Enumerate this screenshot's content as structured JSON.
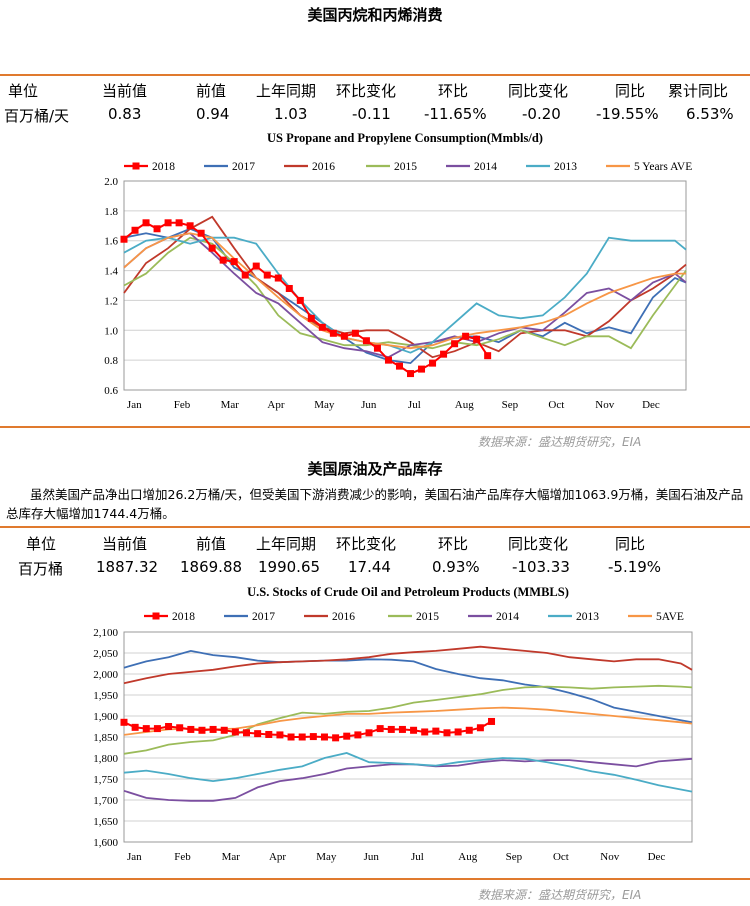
{
  "section1": {
    "title": "美国丙烷和丙烯消费",
    "table": {
      "headers": [
        "单位",
        "当前值",
        "前值",
        "上年同期",
        "环比变化",
        "环比",
        "同比变化",
        "同比",
        "累计同比"
      ],
      "row": [
        "百万桶/天",
        "0.83",
        "0.94",
        "1.03",
        "-0.11",
        "-11.65%",
        "-0.20",
        "-19.55%",
        "6.53%"
      ]
    },
    "source": "数据来源：盛达期货研究，EIA"
  },
  "section2": {
    "title": "美国原油及产品库存",
    "note": "虽然美国产品净出口增加26.2万桶/天，但受美国下游消费减少的影响，美国石油产品库存大幅增加1063.9万桶，美国石油及产品总库存大幅增加1744.4万桶。",
    "table": {
      "headers": [
        "单位",
        "当前值",
        "前值",
        "上年同期",
        "环比变化",
        "环比",
        "同比变化",
        "同比"
      ],
      "row": [
        "百万桶",
        "1887.32",
        "1869.88",
        "1990.65",
        "17.44",
        "0.93%",
        "-103.33",
        "-5.19%"
      ]
    },
    "source": "数据来源：盛达期货研究，EIA"
  },
  "chart_data": [
    {
      "type": "line",
      "title": "US Propane and Propylene Consumption(Mmbls/d)",
      "x_ticks": [
        "Jan",
        "Feb",
        "Mar",
        "Apr",
        "May",
        "Jun",
        "Jul",
        "Aug",
        "Sep",
        "Oct",
        "Nov",
        "Dec"
      ],
      "ylim": [
        0.6,
        2.0
      ],
      "y_ticks": [
        "0.6",
        "0.8",
        "1.0",
        "1.2",
        "1.4",
        "1.6",
        "1.8",
        "2.0"
      ],
      "grid": true,
      "legend": "top",
      "series": [
        {
          "name": "2018",
          "color": "#ff0000",
          "marker": "square",
          "x": [
            1,
            2,
            3,
            4,
            5,
            6,
            7,
            8,
            9,
            10,
            11,
            12,
            13,
            14,
            15,
            16,
            17,
            18,
            19,
            20,
            21,
            22,
            23,
            24,
            25,
            26,
            27,
            28,
            29,
            30,
            31,
            32,
            33,
            34
          ],
          "values": [
            1.61,
            1.67,
            1.72,
            1.68,
            1.72,
            1.72,
            1.7,
            1.65,
            1.55,
            1.47,
            1.46,
            1.37,
            1.43,
            1.37,
            1.35,
            1.28,
            1.2,
            1.08,
            1.02,
            0.98,
            0.96,
            0.98,
            0.93,
            0.88,
            0.8,
            0.76,
            0.71,
            0.74,
            0.78,
            0.84,
            0.91,
            0.96,
            0.94,
            0.83
          ]
        },
        {
          "name": "2017",
          "color": "#3e6fb5",
          "x": [
            1,
            3,
            5,
            7,
            9,
            11,
            13,
            15,
            17,
            19,
            21,
            23,
            25,
            27,
            29,
            31,
            33,
            35,
            37,
            39,
            41,
            43,
            45,
            47,
            49,
            51,
            52
          ],
          "values": [
            1.62,
            1.65,
            1.62,
            1.68,
            1.62,
            1.42,
            1.35,
            1.25,
            1.15,
            1.05,
            0.95,
            0.85,
            0.8,
            0.78,
            0.92,
            0.95,
            0.96,
            0.92,
            1.0,
            0.96,
            1.05,
            0.98,
            1.02,
            0.98,
            1.22,
            1.35,
            1.32
          ]
        },
        {
          "name": "2016",
          "color": "#c0392b",
          "x": [
            1,
            3,
            5,
            7,
            9,
            11,
            13,
            15,
            17,
            19,
            21,
            23,
            25,
            27,
            29,
            31,
            33,
            35,
            37,
            39,
            41,
            43,
            45,
            47,
            49,
            51,
            52
          ],
          "values": [
            1.25,
            1.45,
            1.55,
            1.68,
            1.76,
            1.55,
            1.35,
            1.25,
            1.1,
            1.02,
            0.98,
            1.0,
            1.0,
            0.92,
            0.82,
            0.86,
            0.92,
            0.86,
            0.98,
            1.0,
            1.0,
            0.96,
            1.06,
            1.2,
            1.28,
            1.38,
            1.44
          ]
        },
        {
          "name": "2015",
          "color": "#9bbb59",
          "x": [
            1,
            3,
            5,
            7,
            9,
            11,
            13,
            15,
            17,
            19,
            21,
            23,
            25,
            27,
            29,
            31,
            33,
            35,
            37,
            39,
            41,
            43,
            45,
            47,
            49,
            51,
            52
          ],
          "values": [
            1.3,
            1.38,
            1.52,
            1.62,
            1.58,
            1.45,
            1.3,
            1.1,
            0.98,
            0.94,
            0.9,
            0.9,
            0.92,
            0.9,
            0.88,
            0.92,
            0.9,
            0.94,
            1.0,
            0.95,
            0.9,
            0.96,
            0.96,
            0.88,
            1.1,
            1.3,
            1.4
          ]
        },
        {
          "name": "2014",
          "color": "#7b4fa0",
          "x": [
            1,
            3,
            5,
            7,
            9,
            11,
            13,
            15,
            17,
            19,
            21,
            23,
            25,
            27,
            29,
            31,
            33,
            35,
            37,
            39,
            41,
            43,
            45,
            47,
            49,
            51,
            52
          ],
          "values": [
            1.42,
            1.55,
            1.62,
            1.65,
            1.52,
            1.38,
            1.25,
            1.18,
            1.05,
            0.92,
            0.88,
            0.86,
            0.82,
            0.9,
            0.92,
            0.96,
            0.92,
            0.98,
            1.02,
            1.0,
            1.12,
            1.25,
            1.28,
            1.2,
            1.32,
            1.38,
            1.32
          ]
        },
        {
          "name": "2013",
          "color": "#4bacc6",
          "x": [
            1,
            3,
            5,
            7,
            9,
            11,
            13,
            15,
            17,
            19,
            21,
            23,
            25,
            27,
            29,
            31,
            33,
            35,
            37,
            39,
            41,
            43,
            45,
            47,
            49,
            51,
            52
          ],
          "values": [
            1.52,
            1.6,
            1.62,
            1.58,
            1.62,
            1.62,
            1.58,
            1.38,
            1.2,
            1.05,
            0.95,
            0.92,
            0.9,
            0.85,
            0.92,
            1.05,
            1.18,
            1.1,
            1.08,
            1.1,
            1.22,
            1.38,
            1.62,
            1.6,
            1.6,
            1.6,
            1.54
          ]
        },
        {
          "name": "5 Years AVE",
          "color": "#f79646",
          "x": [
            1,
            3,
            5,
            7,
            9,
            11,
            13,
            15,
            17,
            19,
            21,
            23,
            25,
            27,
            29,
            31,
            33,
            35,
            37,
            39,
            41,
            43,
            45,
            47,
            49,
            51,
            52
          ],
          "values": [
            1.42,
            1.55,
            1.62,
            1.65,
            1.62,
            1.48,
            1.35,
            1.22,
            1.1,
            1.0,
            0.95,
            0.92,
            0.9,
            0.88,
            0.9,
            0.95,
            0.98,
            1.0,
            1.02,
            1.05,
            1.1,
            1.18,
            1.25,
            1.3,
            1.35,
            1.38,
            1.38
          ]
        }
      ]
    },
    {
      "type": "line",
      "title": "U.S.  Stocks of Crude Oil and Petroleum Products  (MMBLS)",
      "x_ticks": [
        "Jan",
        "Feb",
        "Mar",
        "Apr",
        "May",
        "Jun",
        "Jul",
        "Aug",
        "Sep",
        "Oct",
        "Nov",
        "Dec"
      ],
      "ylim": [
        1600,
        2100
      ],
      "y_ticks": [
        "1,600",
        "1,650",
        "1,700",
        "1,750",
        "1,800",
        "1,850",
        "1,900",
        "1,950",
        "2,000",
        "2,050",
        "2,100"
      ],
      "grid": true,
      "legend": "top",
      "series": [
        {
          "name": "2018",
          "color": "#ff0000",
          "marker": "square",
          "x": [
            1,
            2,
            3,
            4,
            5,
            6,
            7,
            8,
            9,
            10,
            11,
            12,
            13,
            14,
            15,
            16,
            17,
            18,
            19,
            20,
            21,
            22,
            23,
            24,
            25,
            26,
            27,
            28,
            29,
            30,
            31,
            32,
            33,
            34
          ],
          "values": [
            1885,
            1873,
            1870,
            1870,
            1875,
            1872,
            1868,
            1866,
            1868,
            1866,
            1862,
            1860,
            1858,
            1856,
            1855,
            1850,
            1850,
            1851,
            1850,
            1848,
            1852,
            1855,
            1860,
            1870,
            1868,
            1868,
            1866,
            1862,
            1864,
            1860,
            1862,
            1866,
            1872,
            1887
          ]
        },
        {
          "name": "2017",
          "color": "#3e6fb5",
          "x": [
            1,
            3,
            5,
            7,
            9,
            11,
            13,
            15,
            17,
            19,
            21,
            23,
            25,
            27,
            29,
            31,
            33,
            35,
            37,
            39,
            41,
            43,
            45,
            47,
            49,
            51,
            52
          ],
          "values": [
            2015,
            2030,
            2040,
            2055,
            2045,
            2040,
            2032,
            2028,
            2030,
            2032,
            2032,
            2035,
            2034,
            2030,
            2012,
            2000,
            1990,
            1985,
            1975,
            1968,
            1955,
            1940,
            1920,
            1910,
            1900,
            1890,
            1885
          ]
        },
        {
          "name": "2016",
          "color": "#c0392b",
          "x": [
            1,
            3,
            5,
            7,
            9,
            11,
            13,
            15,
            17,
            19,
            21,
            23,
            25,
            27,
            29,
            31,
            33,
            35,
            37,
            39,
            41,
            43,
            45,
            47,
            49,
            51,
            52
          ],
          "values": [
            1978,
            1990,
            2000,
            2005,
            2010,
            2018,
            2025,
            2028,
            2030,
            2032,
            2035,
            2040,
            2048,
            2052,
            2055,
            2060,
            2065,
            2060,
            2055,
            2050,
            2040,
            2035,
            2030,
            2035,
            2035,
            2025,
            2010
          ]
        },
        {
          "name": "2015",
          "color": "#9bbb59",
          "x": [
            1,
            3,
            5,
            7,
            9,
            11,
            13,
            15,
            17,
            19,
            21,
            23,
            25,
            27,
            29,
            31,
            33,
            35,
            37,
            39,
            41,
            43,
            45,
            47,
            49,
            51,
            52
          ],
          "values": [
            1810,
            1818,
            1832,
            1838,
            1842,
            1855,
            1880,
            1895,
            1908,
            1905,
            1910,
            1912,
            1920,
            1932,
            1938,
            1945,
            1952,
            1962,
            1968,
            1970,
            1968,
            1965,
            1968,
            1970,
            1972,
            1970,
            1968
          ]
        },
        {
          "name": "2014",
          "color": "#7b4fa0",
          "x": [
            1,
            3,
            5,
            7,
            9,
            11,
            13,
            15,
            17,
            19,
            21,
            23,
            25,
            27,
            29,
            31,
            33,
            35,
            37,
            39,
            41,
            43,
            45,
            47,
            49,
            51,
            52
          ],
          "values": [
            1722,
            1705,
            1700,
            1698,
            1698,
            1705,
            1730,
            1745,
            1752,
            1762,
            1775,
            1780,
            1785,
            1785,
            1780,
            1782,
            1790,
            1795,
            1792,
            1795,
            1795,
            1790,
            1785,
            1780,
            1792,
            1796,
            1798
          ]
        },
        {
          "name": "2013",
          "color": "#4bacc6",
          "x": [
            1,
            3,
            5,
            7,
            9,
            11,
            13,
            15,
            17,
            19,
            21,
            23,
            25,
            27,
            29,
            31,
            33,
            35,
            37,
            39,
            41,
            43,
            45,
            47,
            49,
            51,
            52
          ],
          "values": [
            1765,
            1770,
            1762,
            1752,
            1745,
            1752,
            1762,
            1772,
            1780,
            1800,
            1812,
            1790,
            1788,
            1785,
            1782,
            1790,
            1795,
            1800,
            1798,
            1790,
            1780,
            1768,
            1760,
            1748,
            1735,
            1725,
            1720
          ]
        },
        {
          "name": "5AVE",
          "color": "#f79646",
          "x": [
            1,
            3,
            5,
            7,
            9,
            11,
            13,
            15,
            17,
            19,
            21,
            23,
            25,
            27,
            29,
            31,
            33,
            35,
            37,
            39,
            41,
            43,
            45,
            47,
            49,
            51,
            52
          ],
          "values": [
            1855,
            1862,
            1868,
            1870,
            1868,
            1870,
            1878,
            1888,
            1895,
            1900,
            1905,
            1905,
            1908,
            1910,
            1912,
            1915,
            1918,
            1920,
            1918,
            1915,
            1910,
            1905,
            1900,
            1895,
            1890,
            1885,
            1882
          ]
        }
      ]
    }
  ]
}
